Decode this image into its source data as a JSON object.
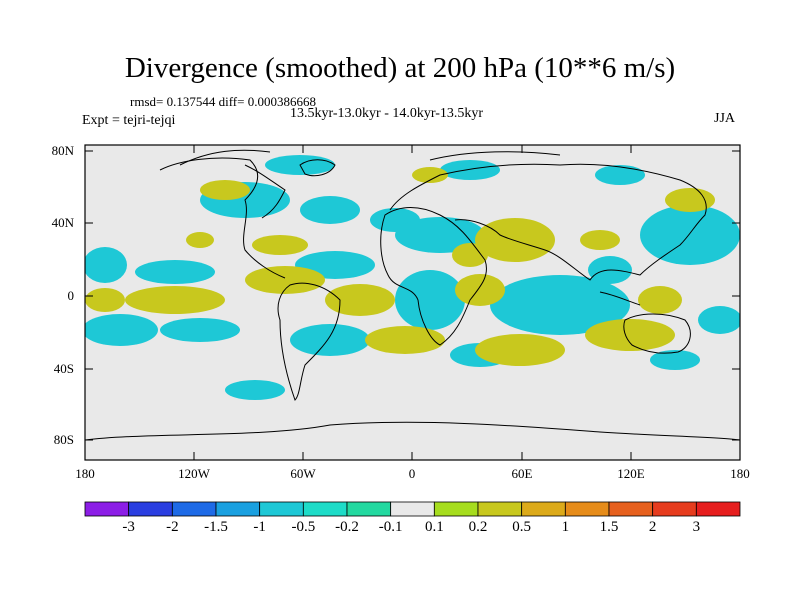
{
  "title": "Divergence (smoothed) at 200 hPa (10**6 m/s)",
  "stats": "rmsd= 0.137544 diff= 0.000386668",
  "period": "13.5kyr-13.0kyr - 14.0kyr-13.5kyr",
  "experiment": "Expt = tejri-tejqi",
  "season": "JJA",
  "lat_ticks": [
    "80N",
    "40N",
    "0",
    "40S",
    "80S"
  ],
  "lon_ticks": [
    "180",
    "120W",
    "60W",
    "0",
    "60E",
    "120E",
    "180"
  ],
  "colorbar": {
    "labels": [
      "-3",
      "-2",
      "-1.5",
      "-1",
      "-0.5",
      "-0.2",
      "-0.1",
      "0.1",
      "0.2",
      "0.5",
      "1",
      "1.5",
      "2",
      "3"
    ],
    "colors": [
      "#8c1ee6",
      "#2a3ee0",
      "#1e6ae6",
      "#1aa0e0",
      "#1ec8d6",
      "#1edcc8",
      "#23d9a0",
      "#e9e9e9",
      "#a6dd1e",
      "#c8c81e",
      "#dcaa1a",
      "#e68c1a",
      "#e6601e",
      "#e63c1e",
      "#e61e1e"
    ]
  },
  "colors": {
    "frame": "#000000",
    "background": "#e9e9e9"
  }
}
